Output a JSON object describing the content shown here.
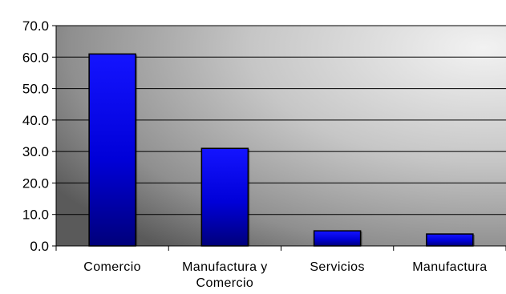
{
  "chart_data": {
    "type": "bar",
    "categories": [
      [
        "Comercio"
      ],
      [
        "Manufactura y",
        "Comercio"
      ],
      [
        "Servicios"
      ],
      [
        "Manufactura"
      ]
    ],
    "values": [
      61.0,
      31.0,
      4.8,
      3.8
    ],
    "title": "",
    "xlabel": "",
    "ylabel": "",
    "ylim": [
      0,
      70
    ],
    "yticks": [
      0,
      10,
      20,
      30,
      40,
      50,
      60,
      70
    ],
    "ytick_labels": [
      "0.0",
      "10.0",
      "20.0",
      "30.0",
      "40.0",
      "50.0",
      "60.0",
      "70.0"
    ],
    "grid": true,
    "legend": "none",
    "colors": {
      "bar_fill": "#0000ff",
      "bar_dark": "#00007a",
      "bar_edge": "#000000",
      "gridline": "#000000",
      "background_light": "#efefef",
      "background_dark": "#555555"
    }
  }
}
